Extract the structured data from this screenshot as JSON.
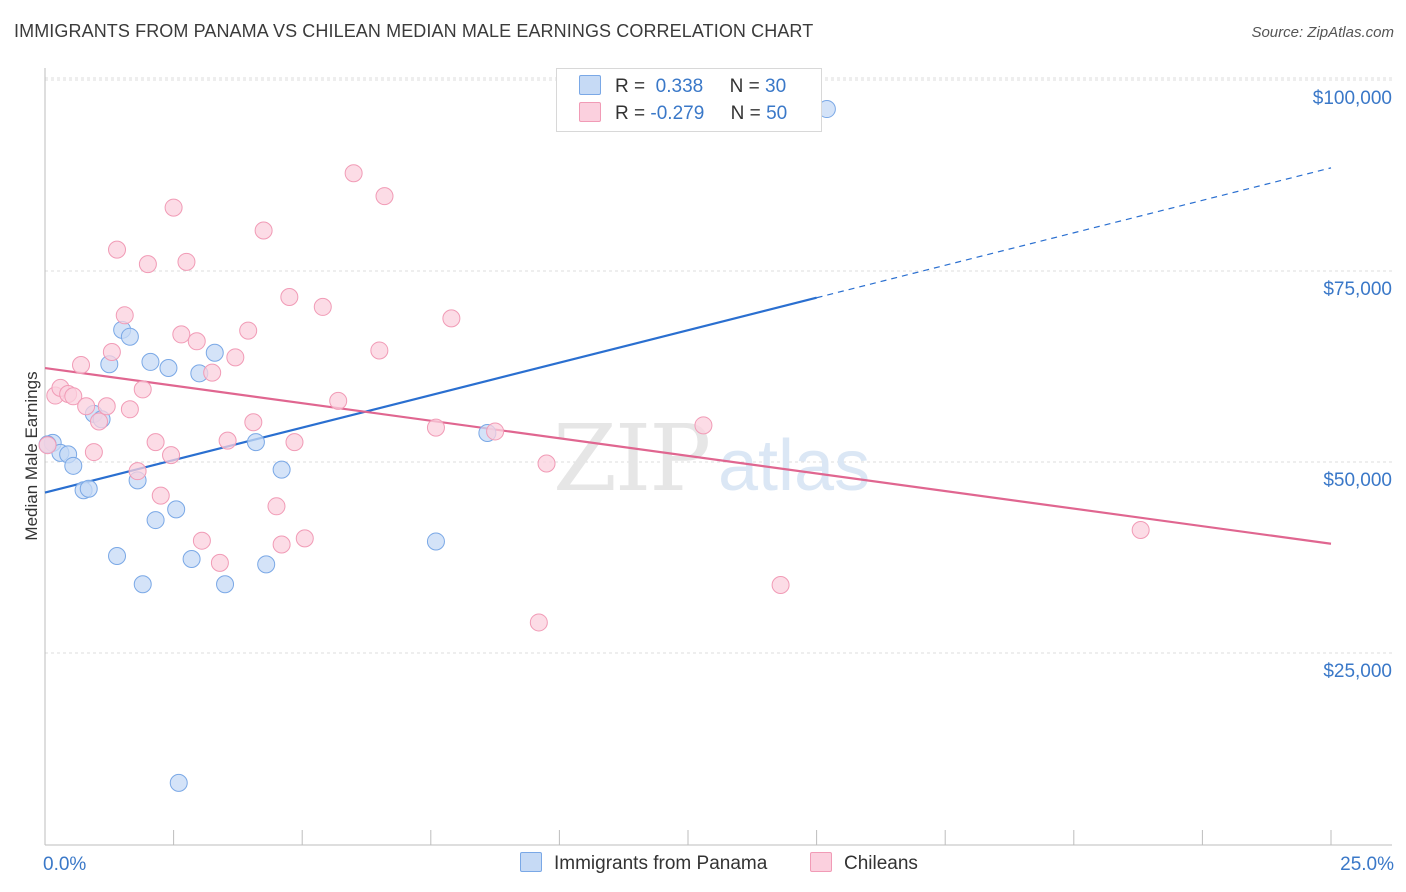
{
  "title": "IMMIGRANTS FROM PANAMA VS CHILEAN MEDIAN MALE EARNINGS CORRELATION CHART",
  "source": "Source: ZipAtlas.com",
  "legend": {
    "rows": [
      {
        "r_label": "R =",
        "r_value": "0.338",
        "n_label": "N =",
        "n_value": "30",
        "color": "#7aa8e6"
      },
      {
        "r_label": "R =",
        "r_value": "-0.279",
        "n_label": "N =",
        "n_value": "50",
        "color": "#f19bb6"
      }
    ]
  },
  "watermark": {
    "zip": "ZIP",
    "atlas": "atlas"
  },
  "chart_data": {
    "type": "scatter",
    "title": "IMMIGRANTS FROM PANAMA VS CHILEAN MEDIAN MALE EARNINGS CORRELATION CHART",
    "xlabel": "",
    "ylabel": "Median Male Earnings",
    "xlim": [
      0,
      25
    ],
    "ylim": [
      0,
      105000
    ],
    "x_tick_labels": {
      "left": "0.0%",
      "right": "25.0%"
    },
    "y_ticks": [
      {
        "value": 25000,
        "label": "$25,000"
      },
      {
        "value": 50000,
        "label": "$50,000"
      },
      {
        "value": 75000,
        "label": "$75,000"
      },
      {
        "value": 100000,
        "label": "$100,000"
      }
    ],
    "series": [
      {
        "name": "Immigrants from Panama",
        "color": "#7aa8e6",
        "fill": "#c6daf5",
        "line_color": "#2a6fd0",
        "trend": {
          "x0": 0,
          "y0": 46000,
          "x1": 15,
          "y1": 71500,
          "x_dash_end": 25,
          "y_dash_end": 88500
        },
        "points": [
          {
            "x": 0.15,
            "y": 52500
          },
          {
            "x": 0.3,
            "y": 51200
          },
          {
            "x": 0.45,
            "y": 51000
          },
          {
            "x": 0.55,
            "y": 49500
          },
          {
            "x": 0.75,
            "y": 46300
          },
          {
            "x": 0.85,
            "y": 46500
          },
          {
            "x": 0.95,
            "y": 56300
          },
          {
            "x": 1.1,
            "y": 55600
          },
          {
            "x": 1.25,
            "y": 62800
          },
          {
            "x": 1.4,
            "y": 37700
          },
          {
            "x": 1.5,
            "y": 67300
          },
          {
            "x": 1.65,
            "y": 66400
          },
          {
            "x": 1.8,
            "y": 47600
          },
          {
            "x": 1.9,
            "y": 34000
          },
          {
            "x": 2.05,
            "y": 63100
          },
          {
            "x": 2.15,
            "y": 42400
          },
          {
            "x": 2.4,
            "y": 62300
          },
          {
            "x": 2.55,
            "y": 43800
          },
          {
            "x": 2.6,
            "y": 8000
          },
          {
            "x": 2.85,
            "y": 37300
          },
          {
            "x": 3.0,
            "y": 61600
          },
          {
            "x": 3.3,
            "y": 64300
          },
          {
            "x": 3.5,
            "y": 34000
          },
          {
            "x": 4.1,
            "y": 52600
          },
          {
            "x": 4.3,
            "y": 36600
          },
          {
            "x": 4.6,
            "y": 49000
          },
          {
            "x": 7.6,
            "y": 39600
          },
          {
            "x": 8.6,
            "y": 53800
          },
          {
            "x": 15.2,
            "y": 96200
          },
          {
            "x": 0.05,
            "y": 52300
          }
        ]
      },
      {
        "name": "Chileans",
        "color": "#f19bb6",
        "fill": "#fbd0de",
        "line_color": "#e06690",
        "trend": {
          "x0": 0,
          "y0": 62300,
          "x1": 25,
          "y1": 39300
        },
        "points": [
          {
            "x": 0.05,
            "y": 52200
          },
          {
            "x": 0.2,
            "y": 58700
          },
          {
            "x": 0.3,
            "y": 59700
          },
          {
            "x": 0.45,
            "y": 58900
          },
          {
            "x": 0.55,
            "y": 58600
          },
          {
            "x": 0.7,
            "y": 62700
          },
          {
            "x": 0.8,
            "y": 57300
          },
          {
            "x": 0.95,
            "y": 51300
          },
          {
            "x": 1.05,
            "y": 55300
          },
          {
            "x": 1.2,
            "y": 57300
          },
          {
            "x": 1.3,
            "y": 64400
          },
          {
            "x": 1.4,
            "y": 77800
          },
          {
            "x": 1.55,
            "y": 69200
          },
          {
            "x": 1.65,
            "y": 56900
          },
          {
            "x": 1.8,
            "y": 48800
          },
          {
            "x": 1.9,
            "y": 59500
          },
          {
            "x": 2.0,
            "y": 75900
          },
          {
            "x": 2.15,
            "y": 52600
          },
          {
            "x": 2.25,
            "y": 45600
          },
          {
            "x": 2.45,
            "y": 50900
          },
          {
            "x": 2.5,
            "y": 83300
          },
          {
            "x": 2.65,
            "y": 66700
          },
          {
            "x": 2.75,
            "y": 76200
          },
          {
            "x": 2.95,
            "y": 65800
          },
          {
            "x": 3.05,
            "y": 39700
          },
          {
            "x": 3.25,
            "y": 61700
          },
          {
            "x": 3.4,
            "y": 36800
          },
          {
            "x": 3.55,
            "y": 52800
          },
          {
            "x": 3.7,
            "y": 63700
          },
          {
            "x": 3.95,
            "y": 67200
          },
          {
            "x": 4.05,
            "y": 55200
          },
          {
            "x": 4.25,
            "y": 80300
          },
          {
            "x": 4.5,
            "y": 44200
          },
          {
            "x": 4.6,
            "y": 39200
          },
          {
            "x": 4.75,
            "y": 71600
          },
          {
            "x": 4.85,
            "y": 52600
          },
          {
            "x": 5.05,
            "y": 40000
          },
          {
            "x": 5.4,
            "y": 70300
          },
          {
            "x": 5.7,
            "y": 58000
          },
          {
            "x": 6.0,
            "y": 87800
          },
          {
            "x": 6.5,
            "y": 64600
          },
          {
            "x": 6.6,
            "y": 84800
          },
          {
            "x": 7.6,
            "y": 54500
          },
          {
            "x": 7.9,
            "y": 68800
          },
          {
            "x": 8.75,
            "y": 54000
          },
          {
            "x": 9.6,
            "y": 29000
          },
          {
            "x": 9.75,
            "y": 49800
          },
          {
            "x": 12.8,
            "y": 54800
          },
          {
            "x": 14.3,
            "y": 33900
          },
          {
            "x": 21.3,
            "y": 41100
          }
        ]
      }
    ]
  }
}
